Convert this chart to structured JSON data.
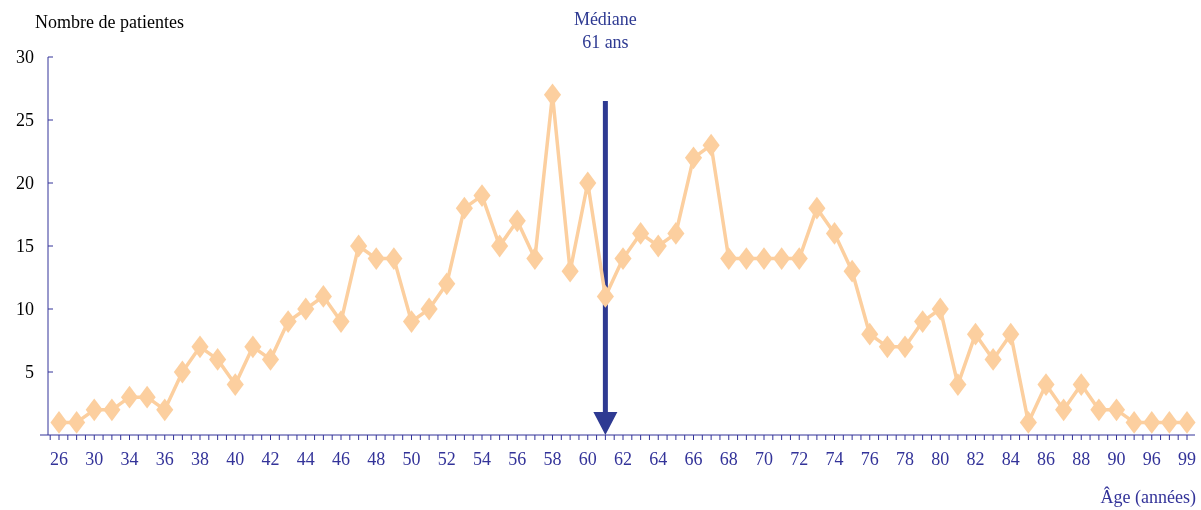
{
  "chart_data": {
    "type": "line",
    "ylabel": "Nombre de patientes",
    "xlabel": "Âge (années)",
    "categories": [
      "26",
      null,
      "30",
      null,
      "34",
      null,
      "36",
      null,
      "38",
      null,
      "40",
      null,
      "42",
      null,
      "44",
      null,
      "46",
      null,
      "48",
      null,
      "50",
      null,
      "52",
      null,
      "54",
      null,
      "56",
      null,
      "58",
      null,
      "60",
      null,
      "62",
      null,
      "64",
      null,
      "66",
      null,
      "68",
      null,
      "70",
      null,
      "72",
      null,
      "74",
      null,
      "76",
      null,
      "78",
      null,
      "80",
      null,
      "82",
      null,
      "84",
      null,
      "86",
      null,
      "88",
      null,
      "90",
      null,
      "96",
      null,
      "99"
    ],
    "series": [
      {
        "color": "#fccf9f",
        "values": [
          1,
          1,
          2,
          2,
          3,
          3,
          2,
          5,
          7,
          6,
          4,
          7,
          6,
          9,
          10,
          11,
          9,
          15,
          14,
          14,
          9,
          10,
          12,
          18,
          19,
          15,
          17,
          14,
          27,
          13,
          20,
          11,
          14,
          16,
          15,
          16,
          22,
          23,
          14,
          14,
          14,
          14,
          14,
          18,
          16,
          13,
          8,
          7,
          7,
          9,
          10,
          4,
          8,
          6,
          8,
          1,
          4,
          2,
          4,
          2,
          2,
          1,
          1,
          1,
          1
        ]
      }
    ],
    "ylim": [
      0,
      30
    ],
    "yticks": [
      5,
      10,
      15,
      20,
      25,
      30
    ],
    "marker": "diamond",
    "line_style": "solid",
    "grid": false,
    "annotations": [
      "Médiane\n61 ans"
    ]
  }
}
